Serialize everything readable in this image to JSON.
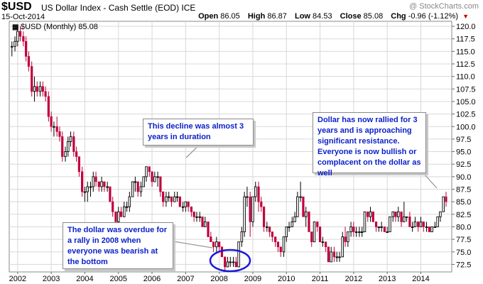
{
  "header": {
    "symbol": "$USD",
    "name": "US Dollar Index - Cash Settle (EOD)",
    "exchange": "ICE",
    "date": "15-Oct-2014",
    "watermark": "@ StockCharts.com",
    "open_label": "Open",
    "open": "86.05",
    "high_label": "High",
    "high": "86.87",
    "low_label": "Low",
    "low": "84.53",
    "close_label": "Close",
    "close": "85.08",
    "chg_label": "Chg",
    "chg": "-0.96 (-1.12%)"
  },
  "legend": {
    "text": "$USD (Monthly) 85.08"
  },
  "colors": {
    "up": "#000000",
    "down": "#c0003c",
    "annotation_text": "#0a1fc8",
    "circle": "#1a1ad8",
    "grid": "#d8d8d8"
  },
  "annotations": [
    {
      "id": "decline",
      "text": "This decline was almost 3 years in duration"
    },
    {
      "id": "rallied",
      "text": "Dollar has now rallied for 3 years and is approaching significant resistance. Everyone is now bullish or complacent on the dollar as well"
    },
    {
      "id": "overdue",
      "text": "The dollar was overdue for a rally in 2008 when everyone was bearish at the bottom"
    }
  ],
  "chart_data": {
    "type": "candlestick",
    "title": "$USD (Monthly) 85.08",
    "x_tick_labels": [
      "2002",
      "2003",
      "2004",
      "2005",
      "2006",
      "2007",
      "2008",
      "2009",
      "2010",
      "2011",
      "2012",
      "2013",
      "2014"
    ],
    "y_tick_labels": [
      "72.5",
      "75.0",
      "77.5",
      "80.0",
      "82.5",
      "85.0",
      "87.5",
      "90.0",
      "92.5",
      "95.0",
      "97.5",
      "100.0",
      "102.5",
      "105.0",
      "107.5",
      "110.0",
      "112.5",
      "115.0",
      "117.5",
      "120.0"
    ],
    "ylim": [
      71,
      121
    ],
    "xlim": [
      2001.75,
      2014.92
    ],
    "grid": true,
    "series": [
      {
        "values": [
          [
            2001.83,
            116,
            117,
            114,
            116
          ],
          [
            2001.92,
            116,
            118,
            115,
            117
          ],
          [
            2002.0,
            117,
            120,
            116,
            119
          ],
          [
            2002.08,
            119,
            120,
            117,
            118
          ],
          [
            2002.17,
            118,
            119,
            116,
            117
          ],
          [
            2002.25,
            117,
            118,
            113,
            114
          ],
          [
            2002.33,
            114,
            115,
            111,
            112
          ],
          [
            2002.42,
            112,
            113,
            106,
            107
          ],
          [
            2002.5,
            107,
            110,
            105,
            108
          ],
          [
            2002.58,
            108,
            109,
            106,
            107
          ],
          [
            2002.67,
            107,
            109,
            106,
            108
          ],
          [
            2002.75,
            108,
            109,
            106,
            107
          ],
          [
            2002.83,
            107,
            108,
            105,
            106
          ],
          [
            2002.92,
            106,
            107,
            101,
            102
          ],
          [
            2003.0,
            102,
            103,
            99,
            100
          ],
          [
            2003.08,
            100,
            101,
            98,
            100
          ],
          [
            2003.17,
            100,
            102,
            98,
            99
          ],
          [
            2003.25,
            99,
            100,
            97,
            98
          ],
          [
            2003.33,
            98,
            99,
            93,
            94
          ],
          [
            2003.42,
            94,
            96,
            93,
            95
          ],
          [
            2003.5,
            95,
            98,
            94,
            97
          ],
          [
            2003.58,
            97,
            99,
            96,
            98
          ],
          [
            2003.67,
            98,
            99,
            94,
            95
          ],
          [
            2003.75,
            95,
            96,
            93,
            94
          ],
          [
            2003.83,
            94,
            94,
            90,
            91
          ],
          [
            2003.92,
            91,
            92,
            86,
            87
          ],
          [
            2004.0,
            87,
            88,
            85,
            87
          ],
          [
            2004.08,
            87,
            89,
            85,
            88
          ],
          [
            2004.17,
            88,
            89,
            86,
            88
          ],
          [
            2004.25,
            88,
            91,
            87,
            90
          ],
          [
            2004.33,
            90,
            91,
            88,
            89
          ],
          [
            2004.42,
            89,
            89,
            87,
            88
          ],
          [
            2004.5,
            88,
            90,
            87,
            89
          ],
          [
            2004.58,
            89,
            89,
            87,
            88
          ],
          [
            2004.67,
            88,
            89,
            87,
            88
          ],
          [
            2004.75,
            88,
            88,
            85,
            85
          ],
          [
            2004.83,
            85,
            86,
            82,
            83
          ],
          [
            2004.92,
            83,
            83,
            80,
            81
          ],
          [
            2005.0,
            81,
            84,
            80,
            83
          ],
          [
            2005.08,
            83,
            84,
            82,
            82
          ],
          [
            2005.17,
            82,
            85,
            82,
            84
          ],
          [
            2005.25,
            84,
            85,
            83,
            84
          ],
          [
            2005.33,
            84,
            87,
            83,
            86
          ],
          [
            2005.42,
            86,
            89,
            86,
            89
          ],
          [
            2005.5,
            89,
            90,
            87,
            89
          ],
          [
            2005.58,
            89,
            89,
            86,
            87
          ],
          [
            2005.67,
            87,
            89,
            86,
            88
          ],
          [
            2005.75,
            88,
            90,
            88,
            90
          ],
          [
            2005.83,
            90,
            92,
            89,
            92
          ],
          [
            2005.92,
            92,
            92,
            90,
            91
          ],
          [
            2006.0,
            91,
            91,
            88,
            89
          ],
          [
            2006.08,
            89,
            91,
            89,
            90
          ],
          [
            2006.17,
            90,
            91,
            88,
            90
          ],
          [
            2006.25,
            90,
            90,
            86,
            87
          ],
          [
            2006.33,
            87,
            87,
            84,
            85
          ],
          [
            2006.42,
            85,
            87,
            84,
            86
          ],
          [
            2006.5,
            86,
            87,
            85,
            86
          ],
          [
            2006.58,
            86,
            86,
            84,
            85
          ],
          [
            2006.67,
            85,
            87,
            85,
            86
          ],
          [
            2006.75,
            86,
            87,
            85,
            86
          ],
          [
            2006.83,
            86,
            86,
            84,
            84
          ],
          [
            2006.92,
            84,
            85,
            83,
            84
          ],
          [
            2007.0,
            84,
            85,
            83,
            85
          ],
          [
            2007.08,
            85,
            85,
            83,
            84
          ],
          [
            2007.17,
            84,
            84,
            82,
            83
          ],
          [
            2007.25,
            83,
            83,
            81,
            82
          ],
          [
            2007.33,
            82,
            83,
            81,
            82
          ],
          [
            2007.42,
            82,
            83,
            81,
            82
          ],
          [
            2007.5,
            82,
            82,
            80,
            80
          ],
          [
            2007.58,
            80,
            82,
            80,
            81
          ],
          [
            2007.67,
            81,
            81,
            78,
            78
          ],
          [
            2007.75,
            78,
            79,
            77,
            77
          ],
          [
            2007.83,
            77,
            77,
            75,
            76
          ],
          [
            2007.92,
            76,
            78,
            75,
            77
          ],
          [
            2008.0,
            77,
            77,
            75,
            76
          ],
          [
            2008.08,
            76,
            76,
            74,
            74
          ],
          [
            2008.17,
            74,
            74,
            71,
            72
          ],
          [
            2008.25,
            72,
            74,
            72,
            73
          ],
          [
            2008.33,
            73,
            74,
            72,
            73
          ],
          [
            2008.42,
            73,
            74,
            72,
            73
          ],
          [
            2008.5,
            73,
            74,
            72,
            72
          ],
          [
            2008.58,
            72,
            77,
            72,
            77
          ],
          [
            2008.67,
            77,
            80,
            76,
            79
          ],
          [
            2008.75,
            79,
            87,
            78,
            86
          ],
          [
            2008.83,
            86,
            88,
            84,
            86
          ],
          [
            2008.92,
            86,
            87,
            78,
            81
          ],
          [
            2009.0,
            81,
            86,
            80,
            86
          ],
          [
            2009.08,
            86,
            89,
            85,
            88
          ],
          [
            2009.17,
            88,
            89,
            83,
            85
          ],
          [
            2009.25,
            85,
            86,
            83,
            84
          ],
          [
            2009.33,
            84,
            84,
            79,
            80
          ],
          [
            2009.42,
            80,
            81,
            79,
            80
          ],
          [
            2009.5,
            80,
            80,
            78,
            79
          ],
          [
            2009.58,
            79,
            79,
            77,
            78
          ],
          [
            2009.67,
            78,
            78,
            76,
            77
          ],
          [
            2009.75,
            77,
            77,
            75,
            76
          ],
          [
            2009.83,
            76,
            76,
            74,
            75
          ],
          [
            2009.92,
            75,
            78,
            74,
            78
          ],
          [
            2010.0,
            78,
            80,
            77,
            80
          ],
          [
            2010.08,
            80,
            81,
            79,
            80
          ],
          [
            2010.17,
            80,
            82,
            80,
            81
          ],
          [
            2010.25,
            81,
            83,
            81,
            82
          ],
          [
            2010.33,
            82,
            87,
            82,
            86
          ],
          [
            2010.42,
            86,
            89,
            85,
            86
          ],
          [
            2010.5,
            86,
            86,
            82,
            82
          ],
          [
            2010.58,
            82,
            84,
            80,
            83
          ],
          [
            2010.67,
            83,
            83,
            79,
            79
          ],
          [
            2010.75,
            79,
            79,
            76,
            77
          ],
          [
            2010.83,
            77,
            81,
            77,
            81
          ],
          [
            2010.92,
            81,
            81,
            79,
            80
          ],
          [
            2011.0,
            80,
            80,
            77,
            77
          ],
          [
            2011.08,
            77,
            78,
            76,
            77
          ],
          [
            2011.17,
            77,
            77,
            75,
            76
          ],
          [
            2011.25,
            76,
            76,
            73,
            73
          ],
          [
            2011.33,
            73,
            76,
            73,
            75
          ],
          [
            2011.42,
            75,
            76,
            73,
            74
          ],
          [
            2011.5,
            74,
            75,
            73,
            74
          ],
          [
            2011.58,
            74,
            75,
            73,
            74
          ],
          [
            2011.67,
            74,
            79,
            74,
            78
          ],
          [
            2011.75,
            78,
            80,
            76,
            77
          ],
          [
            2011.83,
            77,
            79,
            76,
            79
          ],
          [
            2011.92,
            79,
            81,
            78,
            80
          ],
          [
            2012.0,
            80,
            81,
            78,
            79
          ],
          [
            2012.08,
            79,
            80,
            78,
            79
          ],
          [
            2012.17,
            79,
            80,
            78,
            79
          ],
          [
            2012.25,
            79,
            80,
            78,
            79
          ],
          [
            2012.33,
            79,
            83,
            79,
            83
          ],
          [
            2012.42,
            83,
            83,
            81,
            82
          ],
          [
            2012.5,
            82,
            84,
            81,
            83
          ],
          [
            2012.58,
            83,
            83,
            81,
            81
          ],
          [
            2012.67,
            81,
            81,
            79,
            80
          ],
          [
            2012.75,
            80,
            80,
            79,
            80
          ],
          [
            2012.83,
            80,
            81,
            79,
            80
          ],
          [
            2012.92,
            80,
            80,
            79,
            79
          ],
          [
            2013.0,
            79,
            80,
            79,
            79
          ],
          [
            2013.08,
            79,
            82,
            79,
            82
          ],
          [
            2013.17,
            82,
            83,
            81,
            83
          ],
          [
            2013.25,
            83,
            83,
            81,
            82
          ],
          [
            2013.33,
            82,
            84,
            81,
            83
          ],
          [
            2013.42,
            83,
            83,
            80,
            81
          ],
          [
            2013.5,
            81,
            85,
            81,
            82
          ],
          [
            2013.58,
            82,
            82,
            81,
            82
          ],
          [
            2013.67,
            82,
            83,
            80,
            80
          ],
          [
            2013.75,
            80,
            81,
            79,
            80
          ],
          [
            2013.83,
            80,
            82,
            80,
            81
          ],
          [
            2013.92,
            81,
            81,
            79,
            80
          ],
          [
            2014.0,
            80,
            82,
            80,
            81
          ],
          [
            2014.08,
            81,
            81,
            79,
            80
          ],
          [
            2014.17,
            80,
            81,
            79,
            80
          ],
          [
            2014.25,
            80,
            80,
            79,
            79
          ],
          [
            2014.33,
            79,
            80,
            79,
            80
          ],
          [
            2014.42,
            80,
            81,
            80,
            80
          ],
          [
            2014.5,
            80,
            82,
            80,
            82
          ],
          [
            2014.58,
            82,
            83,
            81,
            83
          ],
          [
            2014.67,
            83,
            86,
            83,
            86
          ],
          [
            2014.75,
            86,
            87,
            84,
            85
          ]
        ]
      }
    ]
  }
}
